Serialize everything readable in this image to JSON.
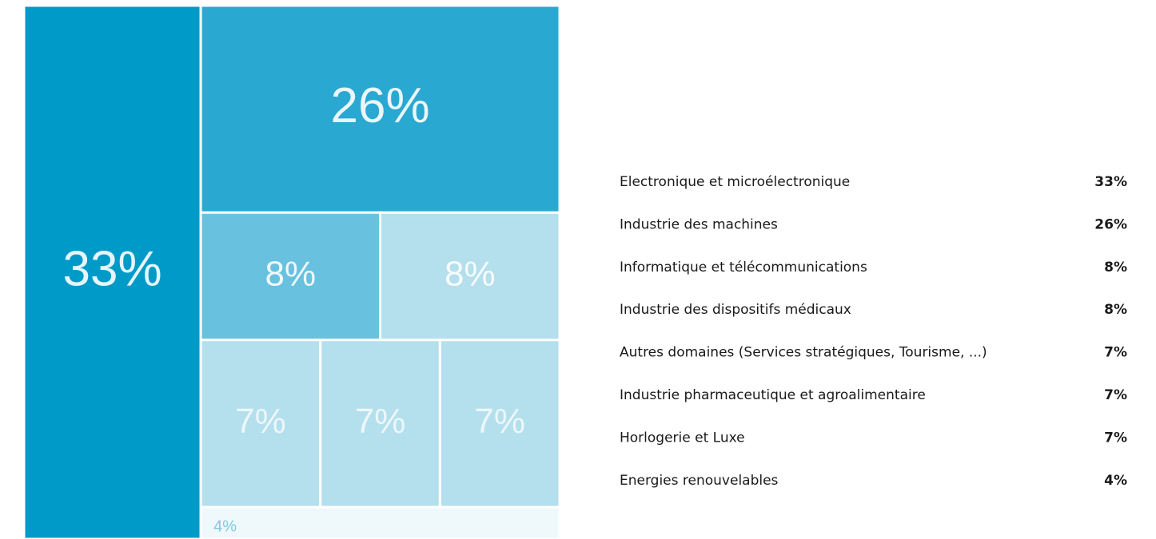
{
  "chart_data": {
    "type": "treemap",
    "categories": [
      "Electronique et microélectronique",
      "Industrie des machines",
      "Informatique et télécommunications",
      "Industrie des dispositifs médicaux",
      "Autres domaines (Services stratégiques, Tourisme, ...)",
      "Industrie pharmaceutique et agroalimentaire",
      "Horlogerie et Luxe",
      "Energies renouvelables"
    ],
    "values": [
      33,
      26,
      8,
      8,
      7,
      7,
      7,
      4
    ],
    "value_labels": [
      "33%",
      "26%",
      "8%",
      "8%",
      "7%",
      "7%",
      "7%",
      "4%"
    ],
    "colors": [
      "#009ac9",
      "#29a8d1",
      "#68c2df",
      "#b4dfec",
      "#b4dfec",
      "#b4dfec",
      "#b4dfec",
      "#eff8fb"
    ]
  }
}
